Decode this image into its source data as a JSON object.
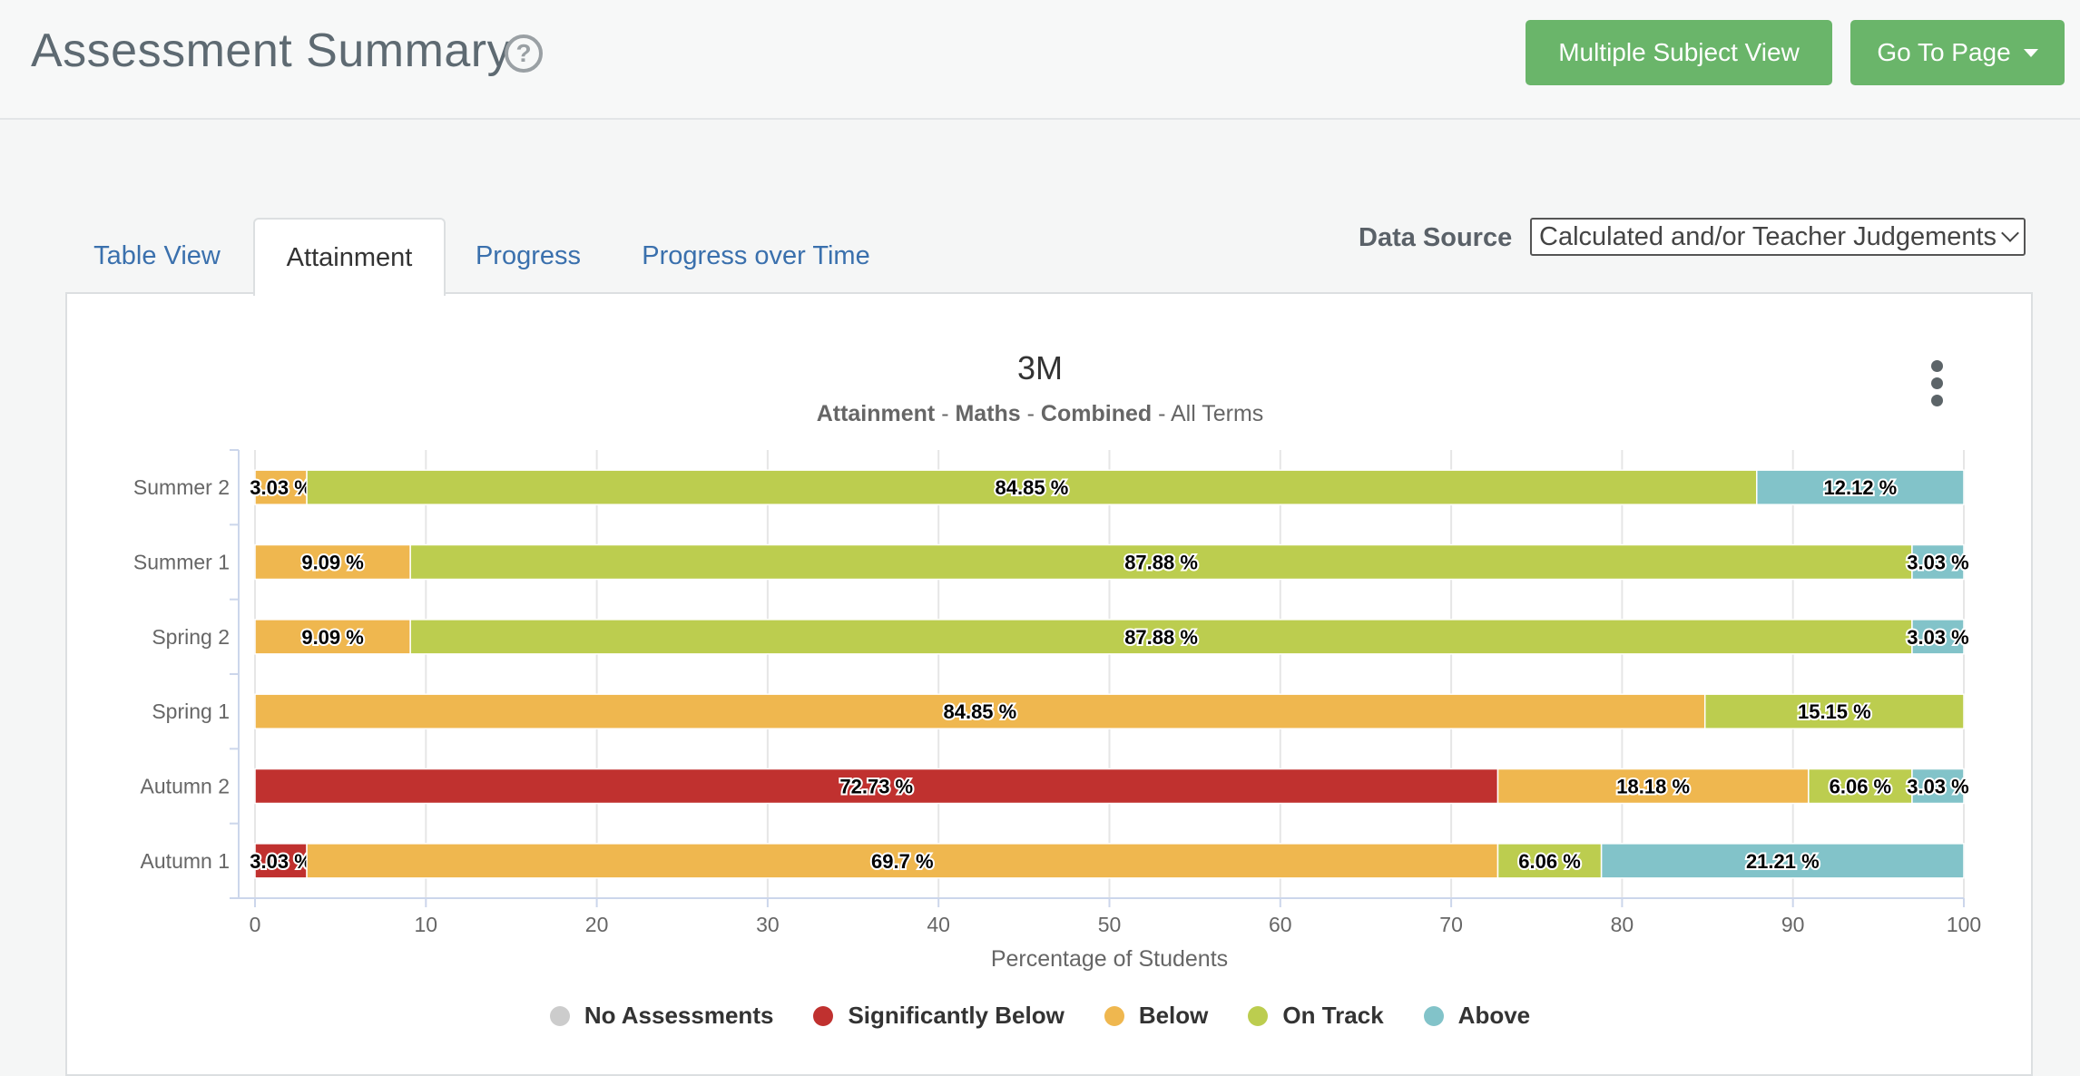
{
  "header": {
    "title": "Assessment Summary",
    "help_icon": "question-circle-icon",
    "multi_subject_label": "Multiple Subject View",
    "goto_label": "Go To Page"
  },
  "tabs": [
    {
      "label": "Table View",
      "active": false
    },
    {
      "label": "Attainment",
      "active": true
    },
    {
      "label": "Progress",
      "active": false
    },
    {
      "label": "Progress over Time",
      "active": false
    }
  ],
  "data_source": {
    "label": "Data Source",
    "selected": "Calculated and/or Teacher Judgements"
  },
  "colors": {
    "no_assessments": "#cccccc",
    "significantly_below": "#c0312f",
    "below": "#efb74f",
    "on_track": "#bccd4f",
    "above": "#82c3c9",
    "accent_button": "#6ab56a"
  },
  "chart_data": {
    "type": "bar",
    "orientation": "horizontal",
    "stacked": true,
    "title": "3M",
    "subtitle_parts": [
      {
        "text": "Attainment",
        "bold": true
      },
      {
        "text": " - ",
        "bold": false
      },
      {
        "text": "Maths",
        "bold": true
      },
      {
        "text": " - ",
        "bold": false
      },
      {
        "text": "Combined",
        "bold": true
      },
      {
        "text": " - All Terms",
        "bold": false
      }
    ],
    "categories": [
      "Summer 2",
      "Summer 1",
      "Spring 2",
      "Spring 1",
      "Autumn 2",
      "Autumn 1"
    ],
    "series": [
      {
        "name": "No Assessments",
        "color": "#cccccc",
        "values": [
          0,
          0,
          0,
          0,
          0,
          0
        ]
      },
      {
        "name": "Significantly Below",
        "color": "#c0312f",
        "values": [
          0,
          0,
          0,
          0,
          72.73,
          3.03
        ]
      },
      {
        "name": "Below",
        "color": "#efb74f",
        "values": [
          3.03,
          9.09,
          9.09,
          84.85,
          18.18,
          69.7
        ]
      },
      {
        "name": "On Track",
        "color": "#bccd4f",
        "values": [
          84.85,
          87.88,
          87.88,
          15.15,
          6.06,
          6.06
        ]
      },
      {
        "name": "Above",
        "color": "#82c3c9",
        "values": [
          12.12,
          3.03,
          3.03,
          0,
          3.03,
          21.21
        ]
      }
    ],
    "xlabel": "Percentage of Students",
    "xlim": [
      0,
      100
    ],
    "xticks": [
      0,
      10,
      20,
      30,
      40,
      50,
      60,
      70,
      80,
      90,
      100
    ],
    "grid": true,
    "legend_position": "bottom"
  }
}
